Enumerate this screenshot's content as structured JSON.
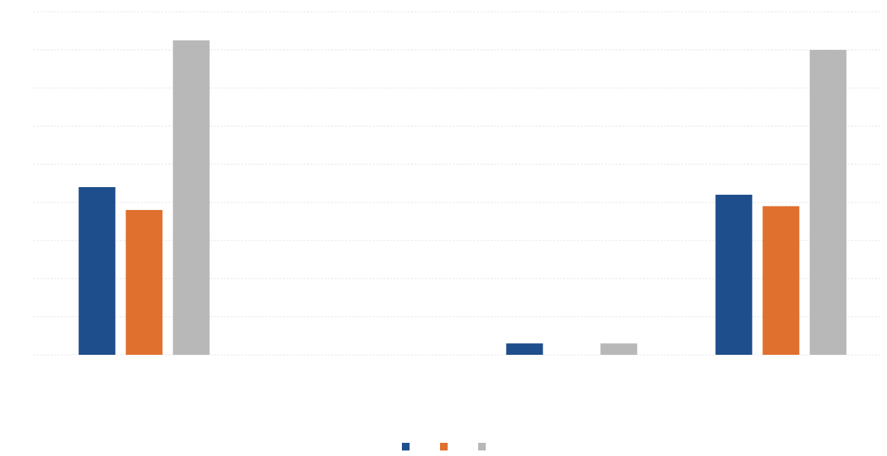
{
  "chart_data": {
    "type": "bar",
    "title": "",
    "xlabel": "",
    "ylabel": "",
    "categories": [
      "",
      "",
      "",
      ""
    ],
    "group_labels": [
      "",
      ""
    ],
    "yticks": [
      "",
      "",
      "",
      "",
      "",
      "",
      "",
      "",
      "",
      ""
    ],
    "ylim": [
      0,
      9
    ],
    "grid": true,
    "legend_position": "bottom-center",
    "series": [
      {
        "name": "",
        "color": "#1f4e8c",
        "values": [
          4.4,
          null,
          0.3,
          4.2
        ]
      },
      {
        "name": "",
        "color": "#e0702e",
        "values": [
          3.8,
          null,
          null,
          3.9
        ]
      },
      {
        "name": "",
        "color": "#b8b8b8",
        "values": [
          8.25,
          null,
          0.3,
          8.0
        ]
      }
    ]
  }
}
